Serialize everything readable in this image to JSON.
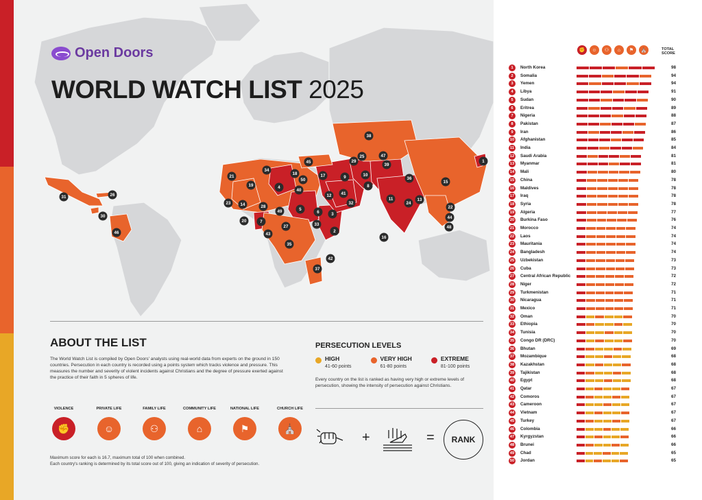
{
  "brand": {
    "name": "Open Doors"
  },
  "title": {
    "main": "WORLD WATCH LIST",
    "year": "2025"
  },
  "about": {
    "heading": "ABOUT THE LIST",
    "text": "The World Watch List is compiled by Open Doors' analysts using real-world data from experts on the ground in 150 countries. Persecution in each country is recorded using a points system which tracks violence and pressure. This measures the number and severity of violent incidents against Christians and the degree of pressure exerted against the practice of their faith in 5 spheres of life.",
    "spheres": [
      {
        "label": "VIOLENCE",
        "icon": "violence-icon",
        "color": "#c92027"
      },
      {
        "label": "PRIVATE LIFE",
        "icon": "private-life-icon",
        "color": "#e8642c"
      },
      {
        "label": "FAMILY LIFE",
        "icon": "family-life-icon",
        "color": "#e8642c"
      },
      {
        "label": "COMMUNITY LIFE",
        "icon": "community-life-icon",
        "color": "#e8642c"
      },
      {
        "label": "NATIONAL LIFE",
        "icon": "national-life-icon",
        "color": "#e8642c"
      },
      {
        "label": "CHURCH LIFE",
        "icon": "church-life-icon",
        "color": "#e8642c"
      }
    ],
    "footnote1": "Maximum score for each is 16.7, maximum total of 100 when combined.",
    "footnote2": "Each country's ranking is determined by its total score out of 100, giving an indication of severity of persecution."
  },
  "levels": {
    "heading": "PERSECUTION LEVELS",
    "items": [
      {
        "name": "HIGH",
        "range": "41-60 points",
        "color": "#e8a726"
      },
      {
        "name": "VERY HIGH",
        "range": "61-80 points",
        "color": "#e8642c"
      },
      {
        "name": "EXTREME",
        "range": "81-100 points",
        "color": "#c92027"
      }
    ],
    "note": "Every country on the list is ranked as having very high or extreme levels of persecution, showing the intensity of persecution against Christians.",
    "equation": {
      "plus": "+",
      "equals": "=",
      "result": "RANK"
    }
  },
  "colors": {
    "extreme": "#c92027",
    "very_high": "#e8642c",
    "high": "#e8a726",
    "land": "#d6d7d9",
    "water": "#f1f2f2"
  },
  "chart_data": {
    "type": "bar",
    "header": {
      "total_label_1": "TOTAL",
      "total_label_2": "SCORE"
    },
    "categories": [
      "North Korea",
      "Somalia",
      "Yemen",
      "Libya",
      "Sudan",
      "Eritrea",
      "Nigeria",
      "Pakistan",
      "Iran",
      "Afghanistan",
      "India",
      "Saudi Arabia",
      "Myanmar",
      "Mali",
      "China",
      "Maldives",
      "Iraq",
      "Syria",
      "Algeria",
      "Burkina Faso",
      "Morocco",
      "Laos",
      "Mauritania",
      "Bangladesh",
      "Uzbekistan",
      "Cuba",
      "Central African Republic",
      "Niger",
      "Turkmenistan",
      "Nicaragua",
      "Mexico",
      "Oman",
      "Ethiopia",
      "Tunisia",
      "Congo DR (DRC)",
      "Bhutan",
      "Mozambique",
      "Kazakhstan",
      "Tajikistan",
      "Egypt",
      "Qatar",
      "Comoros",
      "Cameroon",
      "Vietnam",
      "Turkey",
      "Colombia",
      "Kyrgyzstan",
      "Brunei",
      "Chad",
      "Jordan"
    ],
    "values": [
      98,
      94,
      94,
      91,
      90,
      89,
      88,
      87,
      86,
      85,
      84,
      81,
      81,
      80,
      78,
      78,
      78,
      78,
      77,
      76,
      74,
      74,
      74,
      74,
      73,
      73,
      72,
      72,
      71,
      71,
      71,
      70,
      70,
      70,
      70,
      69,
      68,
      68,
      68,
      68,
      67,
      67,
      67,
      67,
      67,
      66,
      66,
      66,
      65,
      65
    ]
  }
}
